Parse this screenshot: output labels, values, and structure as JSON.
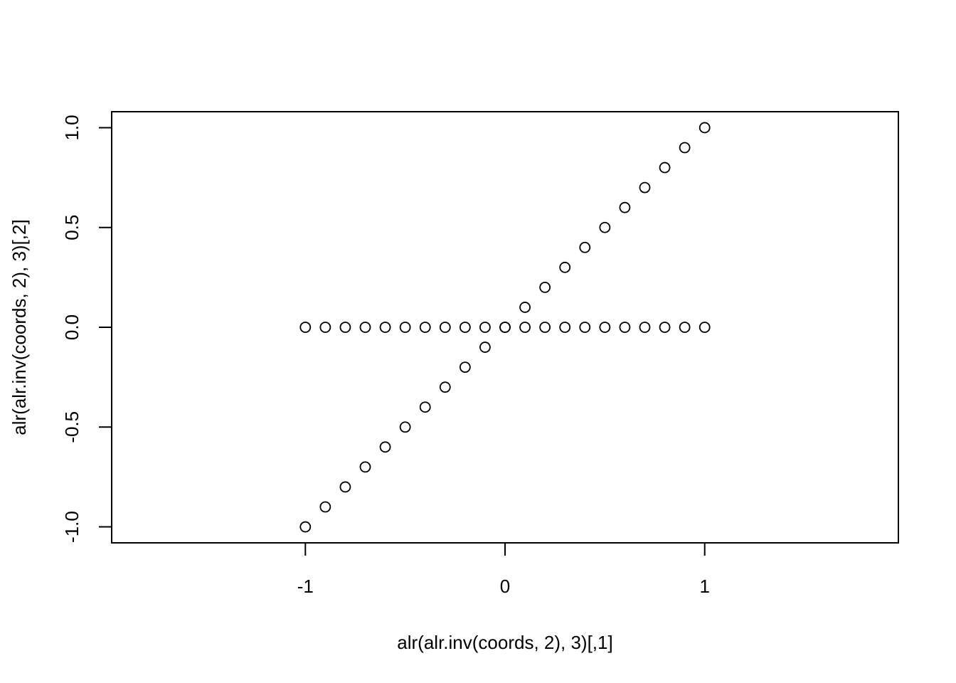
{
  "chart_data": {
    "type": "scatter",
    "title": "",
    "xlabel": "alr(alr.inv(coords, 2), 3)[,1]",
    "ylabel": "alr(alr.inv(coords, 2), 3)[,2]",
    "xlim": [
      -1.97,
      1.97
    ],
    "ylim": [
      -1.08,
      1.08
    ],
    "xticks": [
      -1,
      0,
      1
    ],
    "xtick_labels": [
      "-1",
      "0",
      "1"
    ],
    "yticks": [
      -1.0,
      -0.5,
      0.0,
      0.5,
      1.0
    ],
    "ytick_labels": [
      "-1.0",
      "-0.5",
      "0.0",
      "0.5",
      "1.0"
    ],
    "grid": false,
    "legend": "none",
    "marker": "open-circle",
    "color": "#000000",
    "series": [
      {
        "x": [
          -1.0,
          -0.9,
          -0.8,
          -0.7,
          -0.6,
          -0.5,
          -0.4,
          -0.3,
          -0.2,
          -0.1,
          0.0,
          0.1,
          0.2,
          0.3,
          0.4,
          0.5,
          0.6,
          0.7,
          0.8,
          0.9,
          1.0
        ],
        "y": [
          -1.0,
          -0.9,
          -0.8,
          -0.7,
          -0.6,
          -0.5,
          -0.4,
          -0.3,
          -0.2,
          -0.1,
          0.0,
          0.1,
          0.2,
          0.3,
          0.4,
          0.5,
          0.6,
          0.7,
          0.8,
          0.9,
          1.0
        ]
      },
      {
        "x": [
          -1.0,
          -0.9,
          -0.8,
          -0.7,
          -0.6,
          -0.5,
          -0.4,
          -0.3,
          -0.2,
          -0.1,
          0.0,
          0.1,
          0.2,
          0.3,
          0.4,
          0.5,
          0.6,
          0.7,
          0.8,
          0.9,
          1.0
        ],
        "y": [
          0.0,
          0.0,
          0.0,
          0.0,
          0.0,
          0.0,
          0.0,
          0.0,
          0.0,
          0.0,
          0.0,
          0.0,
          0.0,
          0.0,
          0.0,
          0.0,
          0.0,
          0.0,
          0.0,
          0.0,
          0.0
        ]
      }
    ]
  }
}
